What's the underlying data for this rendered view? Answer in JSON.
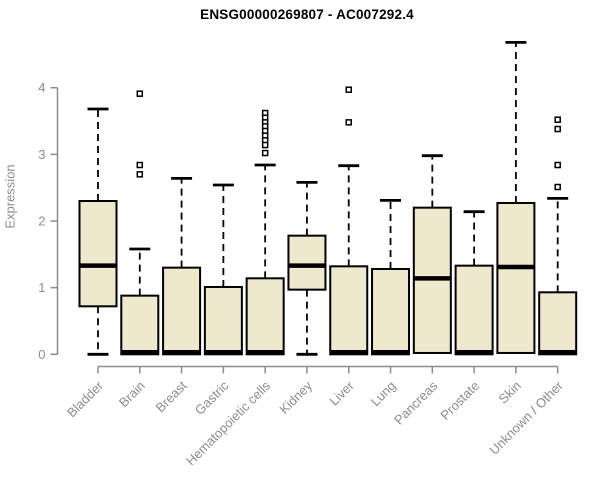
{
  "title": "ENSG00000269807 - AC007292.4",
  "chart_data": {
    "type": "boxplot",
    "title": "ENSG00000269807 - AC007292.4",
    "xlabel": "",
    "ylabel": "Expression",
    "yticks": [
      0,
      1,
      2,
      3,
      4
    ],
    "ylim": [
      0,
      4.8
    ],
    "grid": false,
    "legend": "none",
    "colors": {
      "box_fill": "#EEE8CD",
      "box_stroke": "#000000",
      "median": "#000000",
      "whisker": "#000000",
      "axis": "#8c8c8c",
      "tick_label": "#8c8c8c",
      "title_color": "#000000",
      "background": "#ffffff"
    },
    "categories": [
      "Bladder",
      "Brain",
      "Breast",
      "Gastric",
      "Hematopoietic cells",
      "Kidney",
      "Liver",
      "Lung",
      "Pancreas",
      "Prostate",
      "Skin",
      "Unknown / Other"
    ],
    "series": [
      {
        "name": "Bladder",
        "whisker_low": 0.0,
        "q1": 0.72,
        "median": 1.33,
        "q3": 2.3,
        "whisker_high": 3.68,
        "outliers": []
      },
      {
        "name": "Brain",
        "whisker_low": 0.0,
        "q1": 0.0,
        "median": 0.03,
        "q3": 0.88,
        "whisker_high": 1.58,
        "outliers": [
          3.91,
          2.84,
          2.7
        ]
      },
      {
        "name": "Breast",
        "whisker_low": 0.0,
        "q1": 0.0,
        "median": 0.03,
        "q3": 1.3,
        "whisker_high": 2.64,
        "outliers": []
      },
      {
        "name": "Gastric",
        "whisker_low": 0.0,
        "q1": 0.0,
        "median": 0.03,
        "q3": 1.01,
        "whisker_high": 2.54,
        "outliers": []
      },
      {
        "name": "Hematopoietic cells",
        "whisker_low": 0.0,
        "q1": 0.0,
        "median": 0.03,
        "q3": 1.14,
        "whisker_high": 2.84,
        "outliers": [
          3.62,
          3.55,
          3.48,
          3.42,
          3.35,
          3.28,
          3.21,
          3.14,
          3.02
        ]
      },
      {
        "name": "Kidney",
        "whisker_low": 0.0,
        "q1": 0.97,
        "median": 1.33,
        "q3": 1.78,
        "whisker_high": 2.58,
        "outliers": []
      },
      {
        "name": "Liver",
        "whisker_low": 0.0,
        "q1": 0.0,
        "median": 0.03,
        "q3": 1.32,
        "whisker_high": 2.83,
        "outliers": [
          3.97,
          3.48
        ]
      },
      {
        "name": "Lung",
        "whisker_low": 0.0,
        "q1": 0.0,
        "median": 0.03,
        "q3": 1.28,
        "whisker_high": 2.31,
        "outliers": []
      },
      {
        "name": "Pancreas",
        "whisker_low": 0.02,
        "q1": 0.02,
        "median": 1.14,
        "q3": 2.2,
        "whisker_high": 2.98,
        "outliers": []
      },
      {
        "name": "Prostate",
        "whisker_low": 0.0,
        "q1": 0.0,
        "median": 0.03,
        "q3": 1.33,
        "whisker_high": 2.14,
        "outliers": []
      },
      {
        "name": "Skin",
        "whisker_low": 0.02,
        "q1": 0.02,
        "median": 1.31,
        "q3": 2.27,
        "whisker_high": 4.68,
        "outliers": []
      },
      {
        "name": "Unknown / Other",
        "whisker_low": 0.0,
        "q1": 0.0,
        "median": 0.03,
        "q3": 0.93,
        "whisker_high": 2.34,
        "outliers": [
          3.52,
          3.38,
          2.84,
          2.51
        ]
      }
    ]
  }
}
